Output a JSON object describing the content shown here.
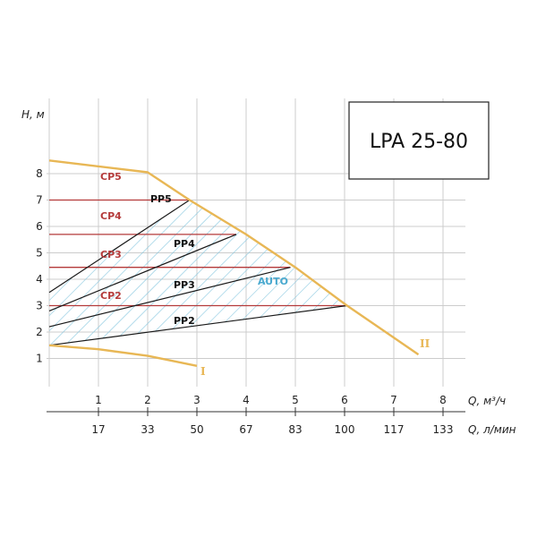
{
  "chart_data": {
    "type": "line",
    "title": "LPA 25-80",
    "ylabel": "H, м",
    "xlabel": "Q, м³/ч",
    "xlabel2": "Q, л/мин",
    "xlim": [
      0,
      8.6
    ],
    "ylim": [
      0,
      9
    ],
    "grid": true,
    "y_ticks": [
      "1",
      "2",
      "3",
      "4",
      "5",
      "6",
      "7",
      "8"
    ],
    "x_ticks": [
      "1",
      "2",
      "3",
      "4",
      "5",
      "6",
      "7",
      "8"
    ],
    "x_ticks2": [
      "17",
      "33",
      "50",
      "67",
      "83",
      "100",
      "117",
      "133"
    ],
    "series": [
      {
        "name": "II",
        "x": [
          0,
          2,
          2.85,
          4,
          5,
          6.05,
          7.5
        ],
        "y": [
          8.5,
          8.05,
          7.0,
          5.7,
          4.45,
          3.0,
          1.15
        ]
      },
      {
        "name": "I",
        "x": [
          0,
          1,
          2,
          3
        ],
        "y": [
          1.5,
          1.35,
          1.1,
          0.72
        ]
      },
      {
        "name": "PP5",
        "x": [
          0,
          2.85
        ],
        "y": [
          3.5,
          7.0
        ]
      },
      {
        "name": "PP4",
        "x": [
          0,
          3.8
        ],
        "y": [
          2.8,
          5.7
        ]
      },
      {
        "name": "PP3",
        "x": [
          0,
          4.9
        ],
        "y": [
          2.2,
          4.45
        ]
      },
      {
        "name": "PP2",
        "x": [
          0,
          6.05
        ],
        "y": [
          1.5,
          3.0
        ]
      },
      {
        "name": "CP5",
        "x": [
          0,
          2.85
        ],
        "y": [
          7.0,
          7.0
        ]
      },
      {
        "name": "CP4",
        "x": [
          0,
          3.8
        ],
        "y": [
          5.7,
          5.7
        ]
      },
      {
        "name": "CP3",
        "x": [
          0,
          4.9
        ],
        "y": [
          4.45,
          4.45
        ]
      },
      {
        "name": "CP2",
        "x": [
          0,
          6.05
        ],
        "y": [
          3.0,
          3.0
        ]
      }
    ],
    "region_label": "AUTO",
    "colors": {
      "max_curve": "#e8b755",
      "cp_lines": "#b43a3a",
      "pp_lines": "#1a1a1a",
      "hatch": "#7ec3dd",
      "auto_text": "#49a9cf",
      "grid": "#cccccc"
    }
  }
}
